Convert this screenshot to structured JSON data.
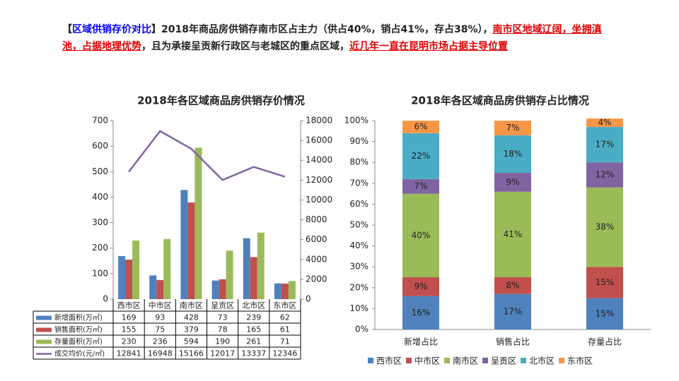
{
  "header": {
    "segments": [
      {
        "text": "【",
        "style": "plain"
      },
      {
        "text": "区域供销存价对比",
        "style": "blue"
      },
      {
        "text": "】2018年商品房供销存南市区占主力（供占40%，销占41%，存占38%），",
        "style": "plain"
      },
      {
        "text": "南市区地域辽阔，坐拥滇池，占据地理优势",
        "style": "red"
      },
      {
        "text": "，且为承接呈贡新行政区与老城区的重点区域，",
        "style": "plain"
      },
      {
        "text": "近几年一直在昆明市场占据主导位置",
        "style": "red"
      }
    ]
  },
  "chart_data": [
    {
      "type": "bar",
      "title": "2018年各区域商品房供销存价情况",
      "categories": [
        "西市区",
        "中市区",
        "南市区",
        "呈贡区",
        "北市区",
        "东市区"
      ],
      "series": [
        {
          "name": "新增面积(万㎡)",
          "color": "#4f81bd",
          "values": [
            169,
            93,
            428,
            73,
            239,
            62
          ]
        },
        {
          "name": "销售面积(万㎡)",
          "color": "#c0504d",
          "values": [
            155,
            75,
            379,
            78,
            165,
            61
          ]
        },
        {
          "name": "存量面积(万㎡)",
          "color": "#9bbb59",
          "values": [
            230,
            236,
            594,
            190,
            261,
            71
          ]
        },
        {
          "name": "成交均价(元/㎡)",
          "color": "#8064a2",
          "type": "line",
          "axis": "y2",
          "values": [
            12841,
            16948,
            15166,
            12017,
            13337,
            12346
          ]
        }
      ],
      "ylim": [
        0,
        700
      ],
      "yticks": [
        0,
        100,
        200,
        300,
        400,
        500,
        600,
        700
      ],
      "y2lim": [
        0,
        18000
      ],
      "y2ticks": [
        0,
        2000,
        4000,
        6000,
        8000,
        10000,
        12000,
        14000,
        16000,
        18000
      ],
      "legend": "table"
    },
    {
      "type": "stacked_bar",
      "title": "2018年各区域商品房供销存占比情况",
      "categories": [
        "新增占比",
        "销售占比",
        "存量占比"
      ],
      "series": [
        {
          "name": "西市区",
          "color": "#4f81bd",
          "values": [
            16,
            17,
            15
          ],
          "value_labels": [
            "16%",
            "17%",
            "15%"
          ]
        },
        {
          "name": "中市区",
          "color": "#c0504d",
          "values": [
            9,
            8,
            15
          ],
          "value_labels": [
            "9%",
            "8%",
            "15%"
          ]
        },
        {
          "name": "南市区",
          "color": "#9bbb59",
          "values": [
            40,
            41,
            38
          ],
          "value_labels": [
            "40%",
            "41%",
            "38%"
          ]
        },
        {
          "name": "呈贡区",
          "color": "#8064a2",
          "values": [
            7,
            9,
            12
          ],
          "value_labels": [
            "7%",
            "9%",
            "12%"
          ]
        },
        {
          "name": "北市区",
          "color": "#4bacc6",
          "values": [
            22,
            18,
            17
          ],
          "value_labels": [
            "22%",
            "18%",
            "17%"
          ]
        },
        {
          "name": "东市区",
          "color": "#f79646",
          "values": [
            6,
            7,
            4
          ],
          "value_labels": [
            "6%",
            "7%",
            "4%"
          ]
        }
      ],
      "ylim": [
        0,
        100
      ],
      "yticks": [
        {
          "value": 0,
          "label": "0%"
        },
        {
          "value": 10,
          "label": "10%"
        },
        {
          "value": 20,
          "label": "20%"
        },
        {
          "value": 30,
          "label": "30%"
        },
        {
          "value": 40,
          "label": "40%"
        },
        {
          "value": 50,
          "label": "50%"
        },
        {
          "value": 60,
          "label": "60%"
        },
        {
          "value": 70,
          "label": "70%"
        },
        {
          "value": 80,
          "label": "80%"
        },
        {
          "value": 90,
          "label": "90%"
        },
        {
          "value": 100,
          "label": "100%"
        }
      ],
      "legend": "bottom"
    }
  ]
}
